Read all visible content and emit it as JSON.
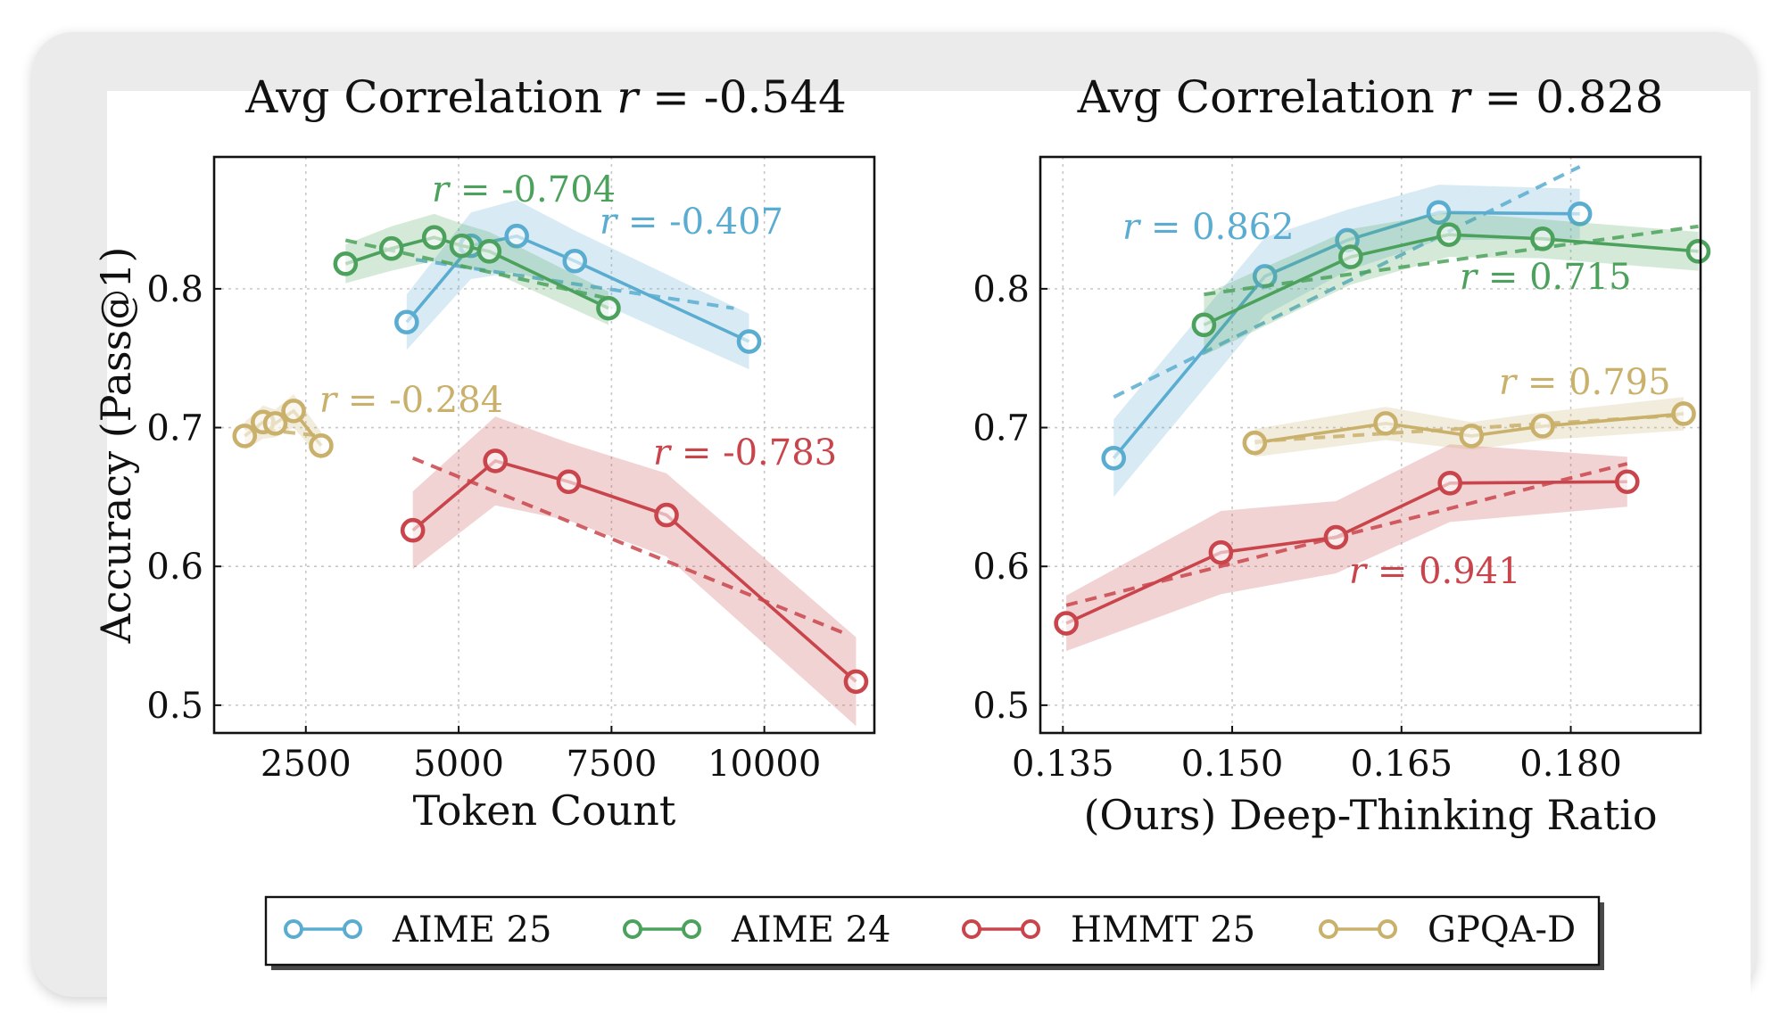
{
  "chart_data": [
    {
      "type": "line",
      "title": "Avg Correlation r = -0.544",
      "title_prefix": "Avg Correlation ",
      "title_var": "r",
      "title_value": " = -0.544",
      "xlabel": "Token Count",
      "ylabel": "Accuracy (Pass@1)",
      "xlim": [
        1000,
        11800
      ],
      "ylim": [
        0.48,
        0.895
      ],
      "xticks": [
        2500,
        5000,
        7500,
        10000
      ],
      "xtick_labels": [
        "2500",
        "5000",
        "7500",
        "10000"
      ],
      "yticks": [
        0.5,
        0.6,
        0.7,
        0.8
      ],
      "ytick_labels": [
        "0.5",
        "0.6",
        "0.7",
        "0.8"
      ],
      "grid": true,
      "series": [
        {
          "name": "AIME 25",
          "x": [
            4150,
            5200,
            5950,
            6900,
            9750
          ],
          "y": [
            0.776,
            0.831,
            0.838,
            0.82,
            0.762
          ],
          "band": [
            0.02,
            0.024,
            0.026,
            0.022,
            0.02
          ],
          "fit": [
            [
              4300,
              0.821
            ],
            [
              9500,
              0.786
            ]
          ],
          "r_label": "r = -0.407",
          "r_value": " = -0.407"
        },
        {
          "name": "AIME 24",
          "x": [
            3150,
            3900,
            4600,
            5050,
            5500,
            7450
          ],
          "y": [
            0.818,
            0.829,
            0.837,
            0.831,
            0.827,
            0.786
          ],
          "band": [
            0.014,
            0.016,
            0.017,
            0.016,
            0.014,
            0.012
          ],
          "fit": [
            [
              3150,
              0.835
            ],
            [
              7450,
              0.793
            ]
          ],
          "r_label": "r = -0.704",
          "r_value": " = -0.704"
        },
        {
          "name": "HMMT 25",
          "x": [
            4250,
            5600,
            6800,
            8400,
            11500
          ],
          "y": [
            0.626,
            0.676,
            0.661,
            0.637,
            0.517
          ],
          "band": [
            0.028,
            0.032,
            0.028,
            0.03,
            0.032
          ],
          "fit": [
            [
              4250,
              0.678
            ],
            [
              11300,
              0.552
            ]
          ],
          "r_label": "r = -0.783",
          "r_value": " = -0.783"
        },
        {
          "name": "GPQA-D",
          "x": [
            1500,
            1800,
            2000,
            2300,
            2750
          ],
          "y": [
            0.694,
            0.704,
            0.703,
            0.712,
            0.687
          ],
          "band": [
            0.01,
            0.012,
            0.01,
            0.012,
            0.01
          ],
          "fit": [
            [
              1500,
              0.7
            ],
            [
              2750,
              0.694
            ]
          ],
          "r_label": "r = -0.284",
          "r_value": " = -0.284"
        }
      ]
    },
    {
      "type": "line",
      "title": "Avg Correlation r = 0.828",
      "title_prefix": "Avg Correlation ",
      "title_var": "r",
      "title_value": " = 0.828",
      "xlabel": "(Ours) Deep-Thinking Ratio",
      "ylabel": "",
      "xlim": [
        0.133,
        0.1915
      ],
      "ylim": [
        0.48,
        0.895
      ],
      "xticks": [
        0.135,
        0.15,
        0.165,
        0.18
      ],
      "xtick_labels": [
        "0.135",
        "0.150",
        "0.165",
        "0.180"
      ],
      "yticks": [
        0.5,
        0.6,
        0.7,
        0.8
      ],
      "ytick_labels": [
        "0.5",
        "0.6",
        "0.7",
        "0.8"
      ],
      "grid": true,
      "series": [
        {
          "name": "AIME 25",
          "x": [
            0.1395,
            0.1529,
            0.1602,
            0.1683,
            0.1808
          ],
          "y": [
            0.678,
            0.809,
            0.835,
            0.855,
            0.854
          ],
          "band": [
            0.028,
            0.028,
            0.022,
            0.02,
            0.018
          ],
          "fit": [
            [
              0.1395,
              0.722
            ],
            [
              0.1808,
              0.888
            ]
          ],
          "r_label": "r = 0.862",
          "r_value": " = 0.862"
        },
        {
          "name": "AIME 24",
          "x": [
            0.1475,
            0.1605,
            0.1692,
            0.1775,
            0.1913
          ],
          "y": [
            0.774,
            0.823,
            0.839,
            0.836,
            0.827
          ],
          "band": [
            0.022,
            0.02,
            0.016,
            0.014,
            0.014
          ],
          "fit": [
            [
              0.1475,
              0.796
            ],
            [
              0.1913,
              0.845
            ]
          ],
          "r_label": "r = 0.715",
          "r_value": " = 0.715"
        },
        {
          "name": "HMMT 25",
          "x": [
            0.1353,
            0.149,
            0.1592,
            0.1693,
            0.185
          ],
          "y": [
            0.559,
            0.61,
            0.621,
            0.66,
            0.661
          ],
          "band": [
            0.02,
            0.03,
            0.026,
            0.028,
            0.018
          ],
          "fit": [
            [
              0.1353,
              0.572
            ],
            [
              0.185,
              0.674
            ]
          ],
          "r_label": "r = 0.941",
          "r_value": " = 0.941"
        },
        {
          "name": "GPQA-D",
          "x": [
            0.152,
            0.1636,
            0.1712,
            0.1775,
            0.19
          ],
          "y": [
            0.689,
            0.703,
            0.694,
            0.701,
            0.71
          ],
          "band": [
            0.01,
            0.012,
            0.01,
            0.01,
            0.012
          ],
          "fit": [
            [
              0.152,
              0.69
            ],
            [
              0.19,
              0.709
            ]
          ],
          "r_label": "r = 0.795",
          "r_value": " = 0.795"
        }
      ]
    }
  ],
  "legend": {
    "position": "bottom",
    "items": [
      {
        "name": "AIME 25",
        "color": "#5aadd0"
      },
      {
        "name": "AIME 24",
        "color": "#4ca25c"
      },
      {
        "name": "HMMT 25",
        "color": "#c9454b"
      },
      {
        "name": "GPQA-D",
        "color": "#c9b06b"
      }
    ]
  },
  "colors": {
    "AIME 25": "#5aadd0",
    "AIME 24": "#4ca25c",
    "HMMT 25": "#c9454b",
    "GPQA-D": "#c9b06b"
  }
}
